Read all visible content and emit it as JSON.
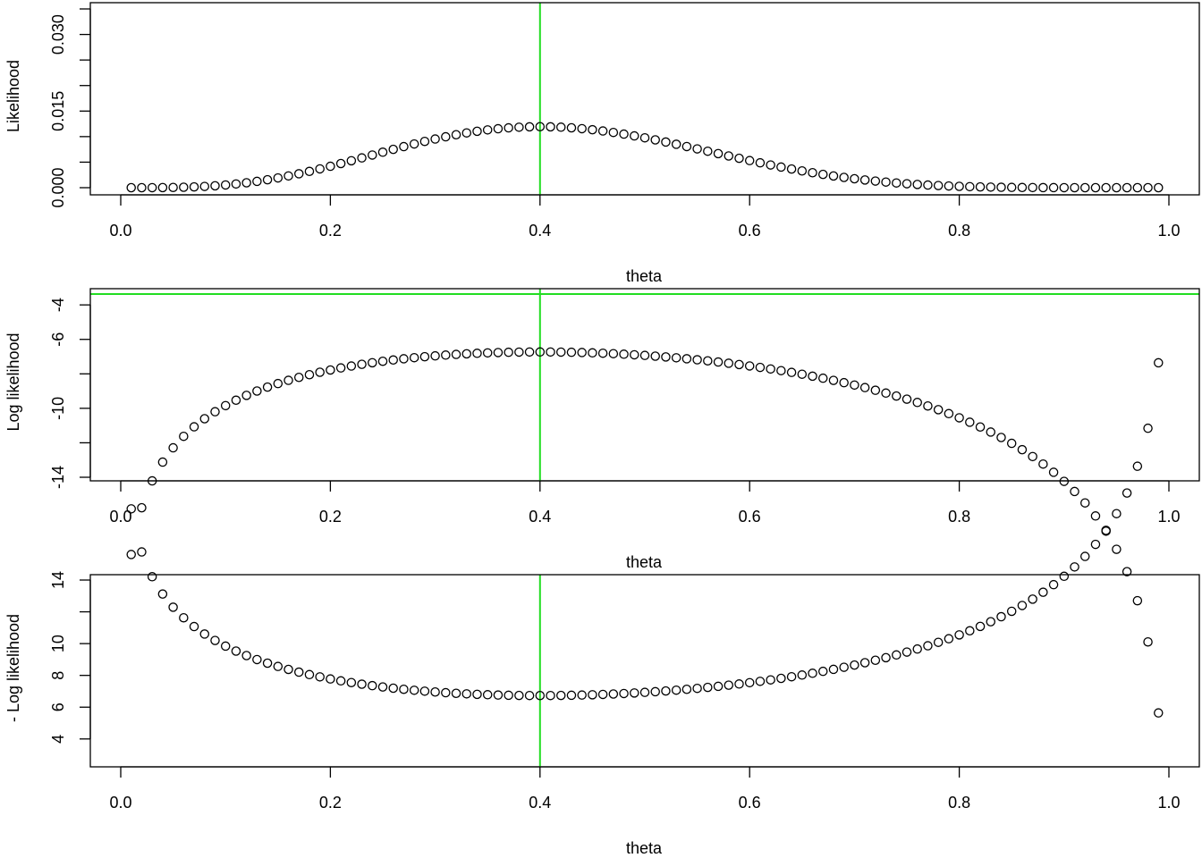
{
  "theme": {
    "reference_line_color": "#22dd22",
    "point_color": "#000000"
  },
  "chart_data": [
    {
      "type": "scatter",
      "title": "",
      "xlabel": "theta",
      "ylabel": "Likelihood",
      "xlim": [
        0,
        1
      ],
      "ylim": [
        0,
        0.035
      ],
      "x_ticks": [
        "0.0",
        "0.2",
        "0.4",
        "0.6",
        "0.8",
        "1.0"
      ],
      "x_tick_values": [
        0,
        0.2,
        0.4,
        0.6,
        0.8,
        1.0
      ],
      "y_ticks": [
        "0.000",
        "0.015",
        "0.030"
      ],
      "y_tick_values": [
        0,
        0.015,
        0.03
      ],
      "y_minor_ticks": [
        0.005,
        0.01,
        0.02,
        0.025,
        0.035
      ],
      "function": "likelihood",
      "x_start": 0.01,
      "x_end": 0.99,
      "x_step": 0.01,
      "reference_vertical_x": 0.4,
      "reference_horizontal_y": null,
      "grid": false,
      "legend": "none"
    },
    {
      "type": "scatter",
      "title": "",
      "xlabel": "theta",
      "ylabel": "Log likelihood",
      "xlim": [
        0,
        1
      ],
      "ylim": [
        -14,
        -3.37
      ],
      "x_ticks": [
        "0.0",
        "0.2",
        "0.4",
        "0.6",
        "0.8",
        "1.0"
      ],
      "x_tick_values": [
        0,
        0.2,
        0.4,
        0.6,
        0.8,
        1.0
      ],
      "y_ticks": [
        "-14",
        "-10",
        "-6",
        "-4"
      ],
      "y_tick_values": [
        -14,
        -10,
        -6,
        -4
      ],
      "y_minor_ticks": [
        -12,
        -8
      ],
      "function": "log_likelihood",
      "x_start": 0.01,
      "x_end": 0.99,
      "x_step": 0.01,
      "reference_vertical_x": 0.4,
      "reference_horizontal_y": -3.37,
      "grid": false,
      "legend": "none"
    },
    {
      "type": "scatter",
      "title": "",
      "xlabel": "theta",
      "ylabel": "- Log likelihood",
      "xlim": [
        0,
        1
      ],
      "ylim": [
        3.37,
        14
      ],
      "x_ticks": [
        "0.0",
        "0.2",
        "0.4",
        "0.6",
        "0.8",
        "1.0"
      ],
      "x_tick_values": [
        0,
        0.2,
        0.4,
        0.6,
        0.8,
        1.0
      ],
      "y_ticks": [
        "4",
        "6",
        "8",
        "10",
        "14"
      ],
      "y_tick_values": [
        4,
        6,
        8,
        10,
        14
      ],
      "y_minor_ticks": [
        12
      ],
      "function": "neg_log_likelihood",
      "x_start": 0.01,
      "x_end": 0.99,
      "x_step": 0.01,
      "reference_vertical_x": 0.4,
      "reference_horizontal_y": null,
      "grid": false,
      "legend": "none"
    }
  ]
}
